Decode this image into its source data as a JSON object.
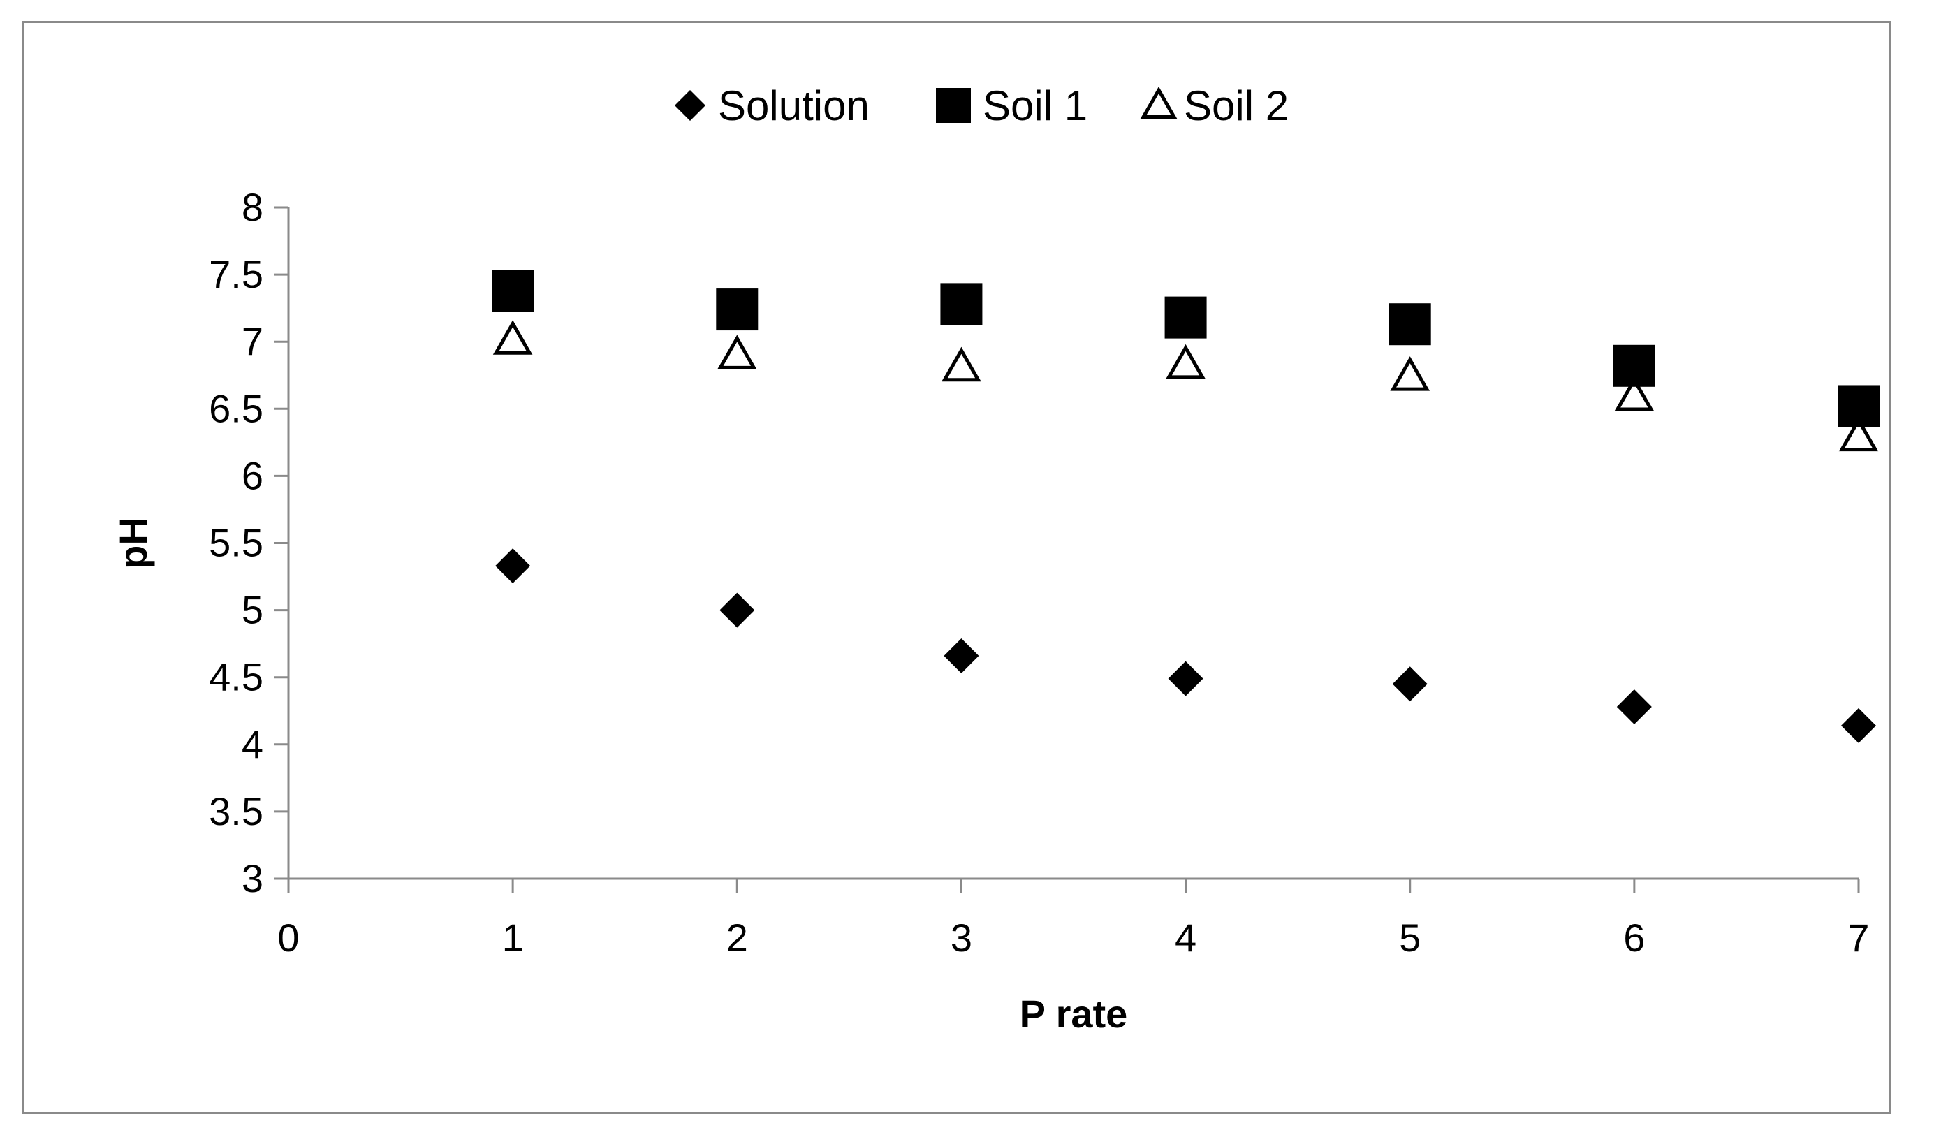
{
  "chart_data": {
    "type": "scatter",
    "title": "",
    "xlabel": "P rate",
    "ylabel": "pH",
    "xlim": [
      0,
      7
    ],
    "ylim": [
      3,
      8
    ],
    "x_ticks": [
      "0",
      "1",
      "2",
      "3",
      "4",
      "5",
      "6",
      "7"
    ],
    "y_ticks": [
      "3",
      "3.5",
      "4",
      "4.5",
      "5",
      "5.5",
      "6",
      "6.5",
      "7",
      "7.5",
      "8"
    ],
    "grid": false,
    "legend_position": "top",
    "series": [
      {
        "name": "Solution",
        "marker": "diamond",
        "color": "#000000",
        "x": [
          1,
          2,
          3,
          4,
          5,
          6,
          7
        ],
        "y": [
          5.33,
          5.0,
          4.66,
          4.49,
          4.45,
          4.28,
          4.14
        ]
      },
      {
        "name": "Soil 1",
        "marker": "square",
        "color": "#000000",
        "x": [
          1,
          2,
          3,
          4,
          5,
          6,
          7
        ],
        "y": [
          7.38,
          7.24,
          7.28,
          7.18,
          7.13,
          6.82,
          6.52
        ]
      },
      {
        "name": "Soil 2",
        "marker": "triangle-open",
        "color": "#000000",
        "x": [
          1,
          2,
          3,
          4,
          5,
          6,
          7
        ],
        "y": [
          7.01,
          6.9,
          6.81,
          6.83,
          6.74,
          6.59,
          6.29
        ]
      }
    ]
  }
}
